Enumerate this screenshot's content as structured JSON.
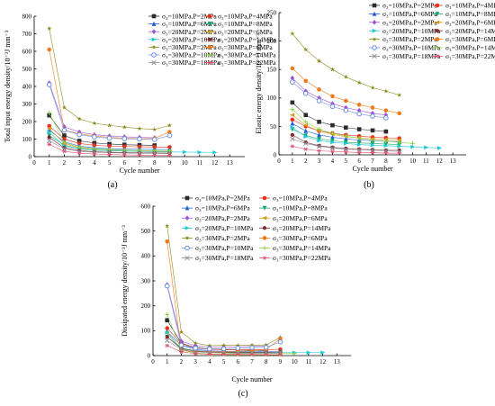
{
  "styles": [
    {
      "color": "#2b2b2b",
      "marker": "square"
    },
    {
      "color": "#e8331c",
      "marker": "circle"
    },
    {
      "color": "#1f5bd6",
      "marker": "triangle-up"
    },
    {
      "color": "#18a86b",
      "marker": "triangle-down"
    },
    {
      "color": "#9a53d6",
      "marker": "diamond"
    },
    {
      "color": "#d49a1c",
      "marker": "triangle-left"
    },
    {
      "color": "#1ec9d6",
      "marker": "triangle-right"
    },
    {
      "color": "#7a2a2a",
      "marker": "hexagon"
    },
    {
      "color": "#8a8a1a",
      "marker": "star"
    },
    {
      "color": "#ef7a1a",
      "marker": "circle"
    },
    {
      "color": "#6a8fe0",
      "marker": "circle-open"
    },
    {
      "color": "#8fd24a",
      "marker": "plus"
    },
    {
      "color": "#8a8a9a",
      "marker": "x"
    },
    {
      "color": "#e05070",
      "marker": "asterisk"
    }
  ],
  "chart_data": [
    {
      "type": "line",
      "panel_label": "(a)",
      "xlabel": "Cycle number",
      "ylabel": "Total input energy density/10⁻³J mm⁻³",
      "xlim": [
        0,
        14
      ],
      "ylim": [
        0,
        800
      ],
      "xticks": [
        0,
        1,
        2,
        3,
        4,
        5,
        6,
        7,
        8,
        9,
        10,
        11,
        12,
        13
      ],
      "yticks": [
        0,
        100,
        200,
        300,
        400,
        500,
        600,
        700,
        800
      ],
      "legend_position": "top-right",
      "series": [
        {
          "name": "σ₃=10MPa,P=2MPa",
          "x": [
            1,
            2,
            3,
            4,
            5,
            6,
            7,
            8
          ],
          "values": [
            235,
            120,
            90,
            78,
            72,
            68,
            66,
            64
          ]
        },
        {
          "name": "σ₃=10MPa,P=4MPa",
          "x": [
            1,
            2,
            3,
            4,
            5,
            6,
            7,
            8,
            9
          ],
          "values": [
            175,
            100,
            75,
            65,
            60,
            58,
            56,
            55,
            54
          ]
        },
        {
          "name": "σ₃=10MPa,P=6MPa",
          "x": [
            1,
            2,
            3,
            4,
            5,
            6,
            7,
            8,
            9
          ],
          "values": [
            150,
            85,
            60,
            50,
            45,
            43,
            42,
            41,
            40
          ]
        },
        {
          "name": "σ₃=10MPa,P=8MPa",
          "x": [
            1,
            2,
            3,
            4,
            5,
            6,
            7,
            8,
            9
          ],
          "values": [
            120,
            65,
            45,
            38,
            34,
            32,
            31,
            30,
            29
          ]
        },
        {
          "name": "σ₃=20MPa,P=2MPa",
          "x": [
            1,
            2,
            3,
            4,
            5,
            6,
            7,
            8
          ],
          "values": [
            420,
            170,
            140,
            125,
            118,
            113,
            110,
            108
          ]
        },
        {
          "name": "σ₃=20MPa,P=6MPa",
          "x": [
            1,
            2,
            3,
            4,
            5,
            6,
            7,
            8,
            9
          ],
          "values": [
            160,
            75,
            50,
            40,
            36,
            33,
            31,
            30,
            29
          ]
        },
        {
          "name": "σ₃=20MPa,P=10MPa",
          "x": [
            1,
            2,
            3,
            4,
            5,
            6,
            7,
            8,
            9,
            10,
            11,
            12
          ],
          "values": [
            140,
            60,
            45,
            38,
            34,
            32,
            30,
            28,
            27,
            26,
            25,
            24
          ]
        },
        {
          "name": "σ₃=20MPa,P=14MPa",
          "x": [
            1,
            2,
            3,
            4,
            5,
            6,
            7,
            8,
            9
          ],
          "values": [
            110,
            50,
            35,
            28,
            25,
            23,
            22,
            21,
            20
          ]
        },
        {
          "name": "σ₃=30MPa,P=2MPa",
          "x": [
            1,
            2,
            3,
            4,
            5,
            6,
            7,
            8,
            9
          ],
          "values": [
            730,
            280,
            215,
            190,
            178,
            168,
            160,
            155,
            178
          ]
        },
        {
          "name": "σ₃=30MPa,P=6MPa",
          "x": [
            1,
            2,
            3,
            4,
            5,
            6,
            7,
            8,
            9
          ],
          "values": [
            610,
            150,
            130,
            118,
            110,
            105,
            102,
            104,
            140
          ]
        },
        {
          "name": "σ₃=30MPa,P=10MPa",
          "x": [
            1,
            2,
            3,
            4,
            5,
            6,
            7,
            8,
            9
          ],
          "values": [
            410,
            150,
            125,
            112,
            105,
            102,
            100,
            98,
            120
          ]
        },
        {
          "name": "σ₃=30MPa,P=14MPa",
          "x": [
            1,
            2,
            3,
            4,
            5,
            6,
            7,
            8,
            9
          ],
          "values": [
            250,
            80,
            55,
            45,
            40,
            37,
            35,
            33,
            32
          ]
        },
        {
          "name": "σ₃=30MPa,P=18MPa",
          "x": [
            1,
            2,
            3,
            4,
            5,
            6,
            7,
            8,
            9
          ],
          "values": [
            90,
            45,
            30,
            25,
            22,
            20,
            19,
            18,
            17
          ]
        },
        {
          "name": "σ₃=30MPa,P=22MPa",
          "x": [
            1,
            2,
            3,
            4,
            5,
            6,
            7,
            8,
            9
          ],
          "values": [
            70,
            30,
            20,
            15,
            12,
            10,
            9,
            8,
            7
          ]
        }
      ]
    },
    {
      "type": "line",
      "panel_label": "(b)",
      "xlabel": "Cycle number",
      "ylabel": "Elastic energy density/10⁻³J mm⁻³",
      "xlim": [
        0,
        14
      ],
      "ylim": [
        0,
        250
      ],
      "xticks": [
        0,
        1,
        2,
        3,
        4,
        5,
        6,
        7,
        8,
        9,
        10,
        11,
        12,
        13
      ],
      "yticks": [
        0,
        50,
        100,
        150,
        200,
        250
      ],
      "legend_position": "top-right",
      "series": [
        {
          "name": "σ₃=10MPa,P=2MPa",
          "x": [
            1,
            2,
            3,
            4,
            5,
            6,
            7,
            8
          ],
          "values": [
            92,
            70,
            58,
            52,
            48,
            45,
            43,
            41
          ]
        },
        {
          "name": "σ₃=10MPa,P=4MPa",
          "x": [
            1,
            2,
            3,
            4,
            5,
            6,
            7,
            8,
            9
          ],
          "values": [
            62,
            50,
            42,
            38,
            35,
            33,
            31,
            30,
            29
          ]
        },
        {
          "name": "σ₃=10MPa,P=6MPa",
          "x": [
            1,
            2,
            3,
            4,
            5,
            6,
            7,
            8,
            9
          ],
          "values": [
            55,
            42,
            35,
            31,
            28,
            26,
            25,
            24,
            23
          ]
        },
        {
          "name": "σ₃=10MPa,P=8MPa",
          "x": [
            1,
            2,
            3,
            4,
            5,
            6,
            7,
            8,
            9
          ],
          "values": [
            45,
            34,
            28,
            25,
            22,
            21,
            20,
            19,
            18
          ]
        },
        {
          "name": "σ₃=20MPa,P=2MPa",
          "x": [
            1,
            2,
            3,
            4,
            5,
            6,
            7,
            8
          ],
          "values": [
            135,
            112,
            100,
            90,
            83,
            78,
            73,
            70
          ]
        },
        {
          "name": "σ₃=20MPa,P=6MPa",
          "x": [
            1,
            2,
            3,
            4,
            5,
            6,
            7,
            8,
            9
          ],
          "values": [
            70,
            52,
            42,
            36,
            32,
            30,
            28,
            27,
            26
          ]
        },
        {
          "name": "σ₃=20MPa,P=10MPa",
          "x": [
            1,
            2,
            3,
            4,
            5,
            6,
            7,
            8,
            9,
            10,
            11,
            12
          ],
          "values": [
            48,
            32,
            25,
            22,
            20,
            18,
            17,
            16,
            15,
            14,
            13,
            12
          ]
        },
        {
          "name": "σ₃=20MPa,P=14MPa",
          "x": [
            1,
            2,
            3,
            4,
            5,
            6,
            7,
            8,
            9
          ],
          "values": [
            35,
            22,
            16,
            13,
            11,
            10,
            9,
            8,
            8
          ]
        },
        {
          "name": "σ₃=30MPa,P=2MPa",
          "x": [
            1,
            2,
            3,
            4,
            5,
            6,
            7,
            8,
            9
          ],
          "values": [
            213,
            185,
            165,
            150,
            137,
            127,
            118,
            112,
            105
          ]
        },
        {
          "name": "σ₃=30MPa,P=6MPa",
          "x": [
            1,
            2,
            3,
            4,
            5,
            6,
            7,
            8,
            9
          ],
          "values": [
            152,
            130,
            115,
            103,
            95,
            88,
            83,
            78,
            73
          ]
        },
        {
          "name": "σ₃=30MPa,P=10MPa",
          "x": [
            1,
            2,
            3,
            4,
            5,
            6,
            7,
            8
          ],
          "values": [
            128,
            108,
            95,
            85,
            78,
            72,
            68,
            65
          ]
        },
        {
          "name": "σ₃=30MPa,P=14MPa",
          "x": [
            1,
            2,
            3,
            4,
            5,
            6,
            7,
            8,
            9,
            10
          ],
          "values": [
            80,
            58,
            45,
            38,
            33,
            29,
            26,
            24,
            22,
            20
          ]
        },
        {
          "name": "σ₃=30MPa,P=18MPa",
          "x": [
            1,
            2,
            3,
            4,
            5,
            6,
            7,
            8,
            9
          ],
          "values": [
            28,
            20,
            15,
            12,
            10,
            9,
            8,
            7,
            6
          ]
        },
        {
          "name": "σ₃=30MPa,P=22MPa",
          "x": [
            1,
            2,
            3,
            4,
            5,
            6,
            7,
            8,
            9
          ],
          "values": [
            15,
            10,
            7,
            6,
            5,
            4,
            4,
            3,
            3
          ]
        }
      ]
    },
    {
      "type": "line",
      "panel_label": "(c)",
      "xlabel": "Cycle number",
      "ylabel": "Dissipated energy density/10⁻³J mm⁻³",
      "xlim": [
        0,
        14
      ],
      "ylim": [
        0,
        600
      ],
      "xticks": [
        0,
        1,
        2,
        3,
        4,
        5,
        6,
        7,
        8,
        9,
        10,
        11,
        12,
        13
      ],
      "yticks": [
        0,
        100,
        200,
        300,
        400,
        500,
        600
      ],
      "legend_position": "top-right",
      "series": [
        {
          "name": "σ₃=10MPa,P=2MPa",
          "x": [
            1,
            2,
            3,
            4,
            5,
            6,
            7,
            8
          ],
          "values": [
            142,
            50,
            32,
            27,
            24,
            22,
            21,
            20
          ]
        },
        {
          "name": "σ₃=10MPa,P=4MPa",
          "x": [
            1,
            2,
            3,
            4,
            5,
            6,
            7,
            8,
            9
          ],
          "values": [
            110,
            48,
            30,
            25,
            24,
            23,
            24,
            24,
            25
          ]
        },
        {
          "name": "σ₃=10MPa,P=6MPa",
          "x": [
            1,
            2,
            3,
            4,
            5,
            6,
            7,
            8,
            9
          ],
          "values": [
            95,
            42,
            25,
            19,
            17,
            16,
            16,
            16,
            17
          ]
        },
        {
          "name": "σ₃=10MPa,P=8MPa",
          "x": [
            1,
            2,
            3,
            4,
            5,
            6,
            7,
            8,
            9
          ],
          "values": [
            75,
            30,
            18,
            13,
            12,
            11,
            11,
            11,
            11
          ]
        },
        {
          "name": "σ₃=20MPa,P=2MPa",
          "x": [
            1,
            2,
            3,
            4,
            5,
            6,
            7,
            8
          ],
          "values": [
            285,
            58,
            40,
            35,
            35,
            35,
            37,
            38
          ]
        },
        {
          "name": "σ₃=20MPa,P=6MPa",
          "x": [
            1,
            2,
            3,
            4,
            5,
            6,
            7,
            8,
            9
          ],
          "values": [
            90,
            25,
            10,
            5,
            4,
            3,
            3,
            3,
            3
          ]
        },
        {
          "name": "σ₃=20MPa,P=10MPa",
          "x": [
            1,
            2,
            3,
            4,
            5,
            6,
            7,
            8,
            9,
            10,
            11,
            12
          ],
          "values": [
            92,
            28,
            20,
            16,
            14,
            14,
            13,
            12,
            12,
            12,
            12,
            12
          ]
        },
        {
          "name": "σ₃=20MPa,P=14MPa",
          "x": [
            1,
            2,
            3,
            4,
            5,
            6,
            7,
            8,
            9
          ],
          "values": [
            75,
            28,
            19,
            15,
            14,
            13,
            13,
            13,
            12
          ]
        },
        {
          "name": "σ₃=30MPa,P=2MPa",
          "x": [
            1,
            2,
            3,
            4,
            5,
            6,
            7,
            8,
            9
          ],
          "values": [
            520,
            95,
            50,
            40,
            41,
            41,
            42,
            43,
            73
          ]
        },
        {
          "name": "σ₃=30MPa,P=6MPa",
          "x": [
            1,
            2,
            3,
            4,
            5,
            6,
            7,
            8,
            9
          ],
          "values": [
            458,
            20,
            15,
            15,
            15,
            17,
            19,
            26,
            67
          ]
        },
        {
          "name": "σ₃=30MPa,P=10MPa",
          "x": [
            1,
            2,
            3,
            4,
            5,
            6,
            7,
            8,
            9
          ],
          "values": [
            280,
            42,
            30,
            27,
            27,
            30,
            32,
            33,
            55
          ]
        },
        {
          "name": "σ₃=30MPa,P=14MPa",
          "x": [
            1,
            2,
            3,
            4,
            5,
            6,
            7,
            8,
            9,
            10
          ],
          "values": [
            165,
            22,
            10,
            7,
            7,
            8,
            9,
            9,
            9,
            9
          ]
        },
        {
          "name": "σ₃=30MPa,P=18MPa",
          "x": [
            1,
            2,
            3,
            4,
            5,
            6,
            7,
            8,
            9
          ],
          "values": [
            60,
            25,
            15,
            12,
            11,
            10,
            10,
            10,
            10
          ]
        },
        {
          "name": "σ₃=30MPa,P=22MPa",
          "x": [
            1,
            2,
            3,
            4,
            5,
            6,
            7,
            8,
            9
          ],
          "values": [
            40,
            15,
            8,
            6,
            5,
            5,
            5,
            4,
            4
          ]
        }
      ]
    }
  ]
}
